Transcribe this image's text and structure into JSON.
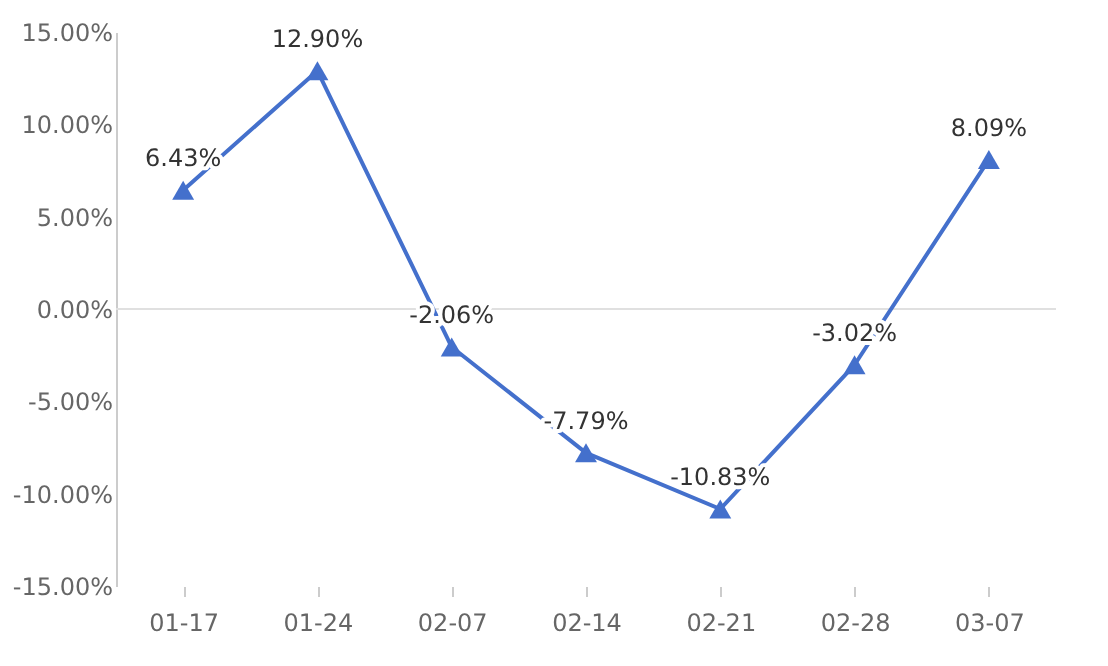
{
  "chart_data": {
    "type": "line",
    "categories": [
      "01-17",
      "01-24",
      "02-07",
      "02-14",
      "02-21",
      "02-28",
      "03-07"
    ],
    "series": [
      {
        "color": "#4470cc",
        "values": [
          6.43,
          12.9,
          -2.06,
          -7.79,
          -10.83,
          -3.02,
          8.09
        ],
        "value_labels": [
          "6.43%",
          "12.90%",
          "-2.06%",
          "-7.79%",
          "-10.83%",
          "-3.02%",
          "8.09%"
        ]
      }
    ],
    "ylim": [
      -15,
      15
    ],
    "yticks": [
      {
        "value": -15,
        "label": "-15.00%"
      },
      {
        "value": -10,
        "label": "-10.00%"
      },
      {
        "value": -5,
        "label": "-5.00%"
      },
      {
        "value": 0,
        "label": "0.00%"
      },
      {
        "value": 5,
        "label": "5.00%"
      },
      {
        "value": 10,
        "label": "10.00%"
      },
      {
        "value": 15,
        "label": "15.00%"
      }
    ],
    "ref_lines": [
      {
        "axis": "y",
        "value": 0,
        "label": null,
        "color": "#e0e0e0"
      }
    ],
    "grid": false,
    "marker": "triangle",
    "line_style": "solid"
  }
}
